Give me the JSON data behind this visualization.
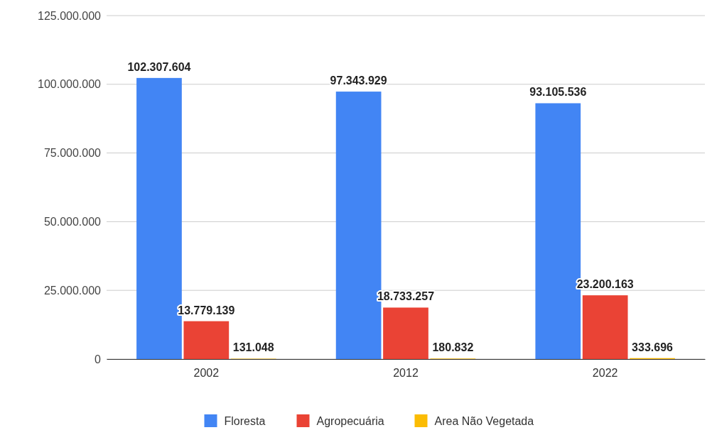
{
  "chart_data": {
    "type": "bar",
    "categories": [
      "2002",
      "2012",
      "2022"
    ],
    "series": [
      {
        "name": "Floresta",
        "color": "#4285f4",
        "values": [
          102307604,
          97343929,
          93105536
        ],
        "value_labels": [
          "102.307.604",
          "97.343.929",
          "93.105.536"
        ]
      },
      {
        "name": "Agropecuária",
        "color": "#ea4335",
        "values": [
          13779139,
          18733257,
          23200163
        ],
        "value_labels": [
          "13.779.139",
          "18.733.257",
          "23.200.163"
        ]
      },
      {
        "name": "Area Não Vegetada",
        "color": "#fbbc04",
        "values": [
          131048,
          180832,
          333696
        ],
        "value_labels": [
          "131.048",
          "180.832",
          "333.696"
        ]
      }
    ],
    "ylim": [
      0,
      125000000
    ],
    "yticks": [
      {
        "value": 0,
        "label": "0"
      },
      {
        "value": 25000000,
        "label": "25.000.000"
      },
      {
        "value": 50000000,
        "label": "50.000.000"
      },
      {
        "value": 75000000,
        "label": "75.000.000"
      },
      {
        "value": 100000000,
        "label": "100.000.000"
      },
      {
        "value": 125000000,
        "label": "125.000.000"
      }
    ],
    "grid": "y",
    "legend": "bottom"
  }
}
